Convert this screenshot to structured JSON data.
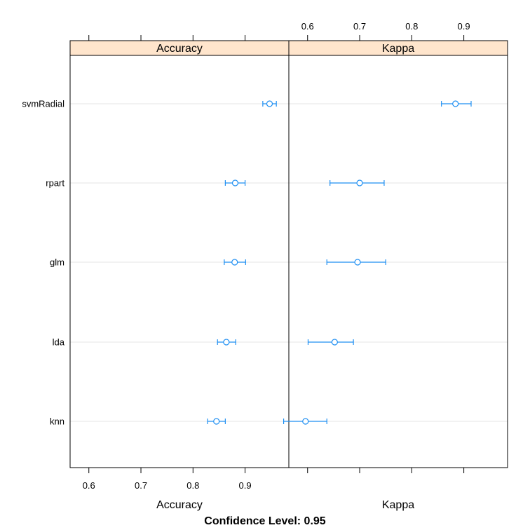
{
  "chart_data": {
    "type": "dotplot",
    "footer": "Confidence Level: 0.95",
    "categories": [
      "knn",
      "lda",
      "glm",
      "rpart",
      "svmRadial"
    ],
    "colors": {
      "point": "#1f8ff2",
      "strip": "#ffe5cc",
      "grid": "#e6e6e6"
    },
    "panels": [
      {
        "name": "Accuracy",
        "xlabel": "Accuracy",
        "xlim": [
          0.564,
          0.984
        ],
        "ticks": [
          0.6,
          0.7,
          0.8,
          0.9
        ],
        "tick_labels": [
          "0.6",
          "0.7",
          "0.8",
          "0.9"
        ],
        "tick_labels_side": "bottom",
        "estimates": [
          0.845,
          0.864,
          0.88,
          0.881,
          0.947
        ],
        "lower": [
          0.828,
          0.847,
          0.86,
          0.862,
          0.934
        ],
        "upper": [
          0.862,
          0.882,
          0.901,
          0.9,
          0.96
        ]
      },
      {
        "name": "Kappa",
        "xlabel": "Kappa",
        "xlim": [
          0.564,
          0.984
        ],
        "ticks": [
          0.6,
          0.7,
          0.8,
          0.9
        ],
        "tick_labels": [
          "0.6",
          "0.7",
          "0.8",
          "0.9"
        ],
        "tick_labels_side": "top",
        "estimates": [
          0.596,
          0.652,
          0.696,
          0.7,
          0.884
        ],
        "lower": [
          0.554,
          0.601,
          0.637,
          0.643,
          0.857
        ],
        "upper": [
          0.637,
          0.688,
          0.75,
          0.747,
          0.914
        ]
      }
    ]
  }
}
